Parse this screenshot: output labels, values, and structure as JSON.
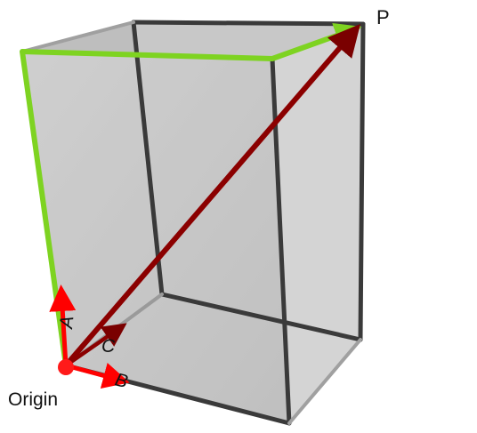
{
  "labels": {
    "point": "P",
    "origin": "Origin",
    "vector_a": "A",
    "vector_b": "B",
    "vector_c": "C"
  },
  "colors": {
    "background": "#ffffff",
    "box_face": "#9a9a9a",
    "box_edge": "#3a3a3a",
    "path_highlight": "#7ed321",
    "basis_vector": "#ff0000",
    "diagonal_vector": "#8b0000",
    "origin_point": "#ff1a1a",
    "label_text": "#111111"
  }
}
